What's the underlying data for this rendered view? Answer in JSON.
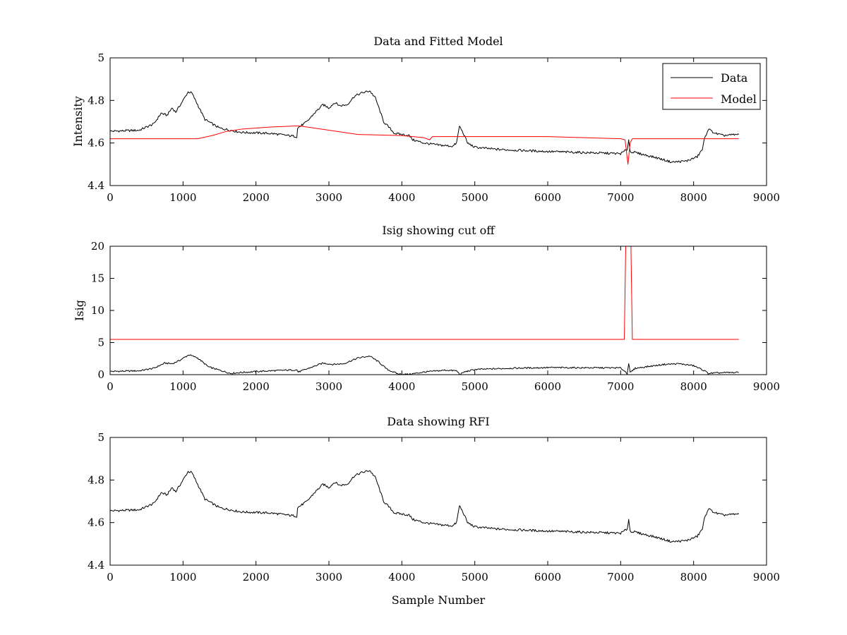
{
  "chart_data": [
    {
      "type": "line",
      "title": "Data and Fitted Model",
      "xlabel": "",
      "ylabel": "Intensity",
      "xlim": [
        0,
        9000
      ],
      "ylim": [
        4.4,
        5
      ],
      "x_ticks": [
        0,
        1000,
        2000,
        3000,
        4000,
        5000,
        6000,
        7000,
        8000,
        9000
      ],
      "y_ticks": [
        4.4,
        4.6,
        4.8,
        5
      ],
      "y_tick_labels": [
        "4.4",
        "4.6",
        "4.8",
        "5"
      ],
      "grid": false,
      "legend": "top-right",
      "series": [
        {
          "name": "Data",
          "color": "#000000",
          "points": [
            [
              0,
              4.655
            ],
            [
              400,
              4.66
            ],
            [
              600,
              4.69
            ],
            [
              700,
              4.74
            ],
            [
              780,
              4.73
            ],
            [
              850,
              4.765
            ],
            [
              900,
              4.745
            ],
            [
              1000,
              4.8
            ],
            [
              1070,
              4.84
            ],
            [
              1120,
              4.835
            ],
            [
              1200,
              4.78
            ],
            [
              1300,
              4.71
            ],
            [
              1400,
              4.69
            ],
            [
              1500,
              4.67
            ],
            [
              1800,
              4.65
            ],
            [
              2200,
              4.645
            ],
            [
              2560,
              4.63
            ],
            [
              2570,
              4.67
            ],
            [
              2700,
              4.7
            ],
            [
              2800,
              4.74
            ],
            [
              2920,
              4.78
            ],
            [
              3000,
              4.765
            ],
            [
              3080,
              4.79
            ],
            [
              3150,
              4.775
            ],
            [
              3250,
              4.78
            ],
            [
              3350,
              4.82
            ],
            [
              3450,
              4.835
            ],
            [
              3560,
              4.845
            ],
            [
              3640,
              4.81
            ],
            [
              3680,
              4.77
            ],
            [
              3750,
              4.7
            ],
            [
              3900,
              4.645
            ],
            [
              4100,
              4.635
            ],
            [
              4150,
              4.615
            ],
            [
              4300,
              4.6
            ],
            [
              4500,
              4.59
            ],
            [
              4700,
              4.585
            ],
            [
              4750,
              4.6
            ],
            [
              4790,
              4.68
            ],
            [
              4850,
              4.64
            ],
            [
              4900,
              4.6
            ],
            [
              5000,
              4.58
            ],
            [
              5300,
              4.57
            ],
            [
              6000,
              4.56
            ],
            [
              7000,
              4.55
            ],
            [
              7090,
              4.57
            ],
            [
              7110,
              4.615
            ],
            [
              7130,
              4.56
            ],
            [
              7200,
              4.555
            ],
            [
              7500,
              4.53
            ],
            [
              7700,
              4.51
            ],
            [
              7900,
              4.515
            ],
            [
              8050,
              4.535
            ],
            [
              8120,
              4.57
            ],
            [
              8150,
              4.62
            ],
            [
              8200,
              4.665
            ],
            [
              8300,
              4.645
            ],
            [
              8400,
              4.635
            ],
            [
              8620,
              4.64
            ]
          ]
        },
        {
          "name": "Model",
          "color": "#ff0000",
          "points": [
            [
              0,
              4.62
            ],
            [
              1200,
              4.62
            ],
            [
              1400,
              4.635
            ],
            [
              1600,
              4.655
            ],
            [
              1800,
              4.665
            ],
            [
              2200,
              4.675
            ],
            [
              2560,
              4.68
            ],
            [
              2580,
              4.68
            ],
            [
              2700,
              4.675
            ],
            [
              3400,
              4.64
            ],
            [
              4000,
              4.635
            ],
            [
              4300,
              4.625
            ],
            [
              4380,
              4.615
            ],
            [
              4420,
              4.63
            ],
            [
              5000,
              4.63
            ],
            [
              6000,
              4.63
            ],
            [
              6500,
              4.625
            ],
            [
              7000,
              4.62
            ],
            [
              7060,
              4.615
            ],
            [
              7100,
              4.5
            ],
            [
              7130,
              4.6
            ],
            [
              7160,
              4.62
            ],
            [
              8000,
              4.62
            ],
            [
              8620,
              4.62
            ]
          ]
        }
      ]
    },
    {
      "type": "line",
      "title": "Isig showing cut off",
      "xlabel": "",
      "ylabel": "Isig",
      "xlim": [
        0,
        9000
      ],
      "ylim": [
        0,
        20
      ],
      "x_ticks": [
        0,
        1000,
        2000,
        3000,
        4000,
        5000,
        6000,
        7000,
        8000,
        9000
      ],
      "y_ticks": [
        0,
        5,
        10,
        15,
        20
      ],
      "y_tick_labels": [
        "0",
        "5",
        "10",
        "15",
        "20"
      ],
      "grid": false,
      "series": [
        {
          "color": "#000000",
          "points": [
            [
              0,
              0.5
            ],
            [
              400,
              0.6
            ],
            [
              600,
              1.0
            ],
            [
              750,
              1.8
            ],
            [
              850,
              1.7
            ],
            [
              950,
              2.2
            ],
            [
              1080,
              3.1
            ],
            [
              1200,
              2.6
            ],
            [
              1350,
              1.2
            ],
            [
              1500,
              0.7
            ],
            [
              1650,
              0.2
            ],
            [
              1800,
              0.35
            ],
            [
              2200,
              0.6
            ],
            [
              2560,
              0.75
            ],
            [
              2580,
              0.4
            ],
            [
              2700,
              0.9
            ],
            [
              2920,
              1.8
            ],
            [
              3050,
              1.6
            ],
            [
              3200,
              1.7
            ],
            [
              3400,
              2.6
            ],
            [
              3560,
              2.9
            ],
            [
              3680,
              2.0
            ],
            [
              3800,
              0.8
            ],
            [
              3950,
              0.1
            ],
            [
              4100,
              0.05
            ],
            [
              4300,
              0.4
            ],
            [
              4600,
              0.7
            ],
            [
              4750,
              0.6
            ],
            [
              4800,
              0.0
            ],
            [
              4850,
              0.4
            ],
            [
              5000,
              0.8
            ],
            [
              5500,
              1.0
            ],
            [
              6000,
              1.1
            ],
            [
              7000,
              1.05
            ],
            [
              7090,
              0.2
            ],
            [
              7110,
              1.8
            ],
            [
              7130,
              0.3
            ],
            [
              7200,
              1.0
            ],
            [
              7600,
              1.6
            ],
            [
              7800,
              1.7
            ],
            [
              8000,
              1.4
            ],
            [
              8150,
              0.6
            ],
            [
              8200,
              0.2
            ],
            [
              8400,
              0.3
            ],
            [
              8620,
              0.35
            ]
          ]
        },
        {
          "color": "#ff0000",
          "points": [
            [
              0,
              5.5
            ],
            [
              7050,
              5.5
            ],
            [
              7070,
              20.5
            ],
            [
              7140,
              20.5
            ],
            [
              7160,
              5.5
            ],
            [
              8620,
              5.5
            ]
          ]
        }
      ]
    },
    {
      "type": "line",
      "title": "Data showing RFI",
      "xlabel": "Sample Number",
      "ylabel": "",
      "xlim": [
        0,
        9000
      ],
      "ylim": [
        4.4,
        5
      ],
      "x_ticks": [
        0,
        1000,
        2000,
        3000,
        4000,
        5000,
        6000,
        7000,
        8000,
        9000
      ],
      "y_ticks": [
        4.4,
        4.6,
        4.8,
        5
      ],
      "y_tick_labels": [
        "4.4",
        "4.6",
        "4.8",
        "5"
      ],
      "grid": false,
      "series": [
        {
          "color": "#000000",
          "points": [
            [
              0,
              4.655
            ],
            [
              400,
              4.66
            ],
            [
              600,
              4.69
            ],
            [
              700,
              4.74
            ],
            [
              780,
              4.73
            ],
            [
              850,
              4.765
            ],
            [
              900,
              4.745
            ],
            [
              1000,
              4.8
            ],
            [
              1070,
              4.84
            ],
            [
              1120,
              4.835
            ],
            [
              1200,
              4.78
            ],
            [
              1300,
              4.71
            ],
            [
              1400,
              4.69
            ],
            [
              1500,
              4.67
            ],
            [
              1800,
              4.65
            ],
            [
              2200,
              4.645
            ],
            [
              2560,
              4.63
            ],
            [
              2570,
              4.67
            ],
            [
              2700,
              4.7
            ],
            [
              2800,
              4.74
            ],
            [
              2920,
              4.78
            ],
            [
              3000,
              4.765
            ],
            [
              3080,
              4.79
            ],
            [
              3150,
              4.775
            ],
            [
              3250,
              4.78
            ],
            [
              3350,
              4.82
            ],
            [
              3450,
              4.835
            ],
            [
              3560,
              4.845
            ],
            [
              3640,
              4.81
            ],
            [
              3680,
              4.77
            ],
            [
              3750,
              4.7
            ],
            [
              3900,
              4.645
            ],
            [
              4100,
              4.635
            ],
            [
              4150,
              4.615
            ],
            [
              4300,
              4.6
            ],
            [
              4500,
              4.59
            ],
            [
              4700,
              4.585
            ],
            [
              4750,
              4.6
            ],
            [
              4790,
              4.68
            ],
            [
              4850,
              4.64
            ],
            [
              4900,
              4.6
            ],
            [
              5000,
              4.58
            ],
            [
              5300,
              4.57
            ],
            [
              6000,
              4.56
            ],
            [
              7000,
              4.55
            ],
            [
              7090,
              4.57
            ],
            [
              7110,
              4.615
            ],
            [
              7130,
              4.56
            ],
            [
              7200,
              4.555
            ],
            [
              7500,
              4.53
            ],
            [
              7700,
              4.51
            ],
            [
              7900,
              4.515
            ],
            [
              8050,
              4.535
            ],
            [
              8120,
              4.57
            ],
            [
              8150,
              4.62
            ],
            [
              8200,
              4.665
            ],
            [
              8300,
              4.645
            ],
            [
              8400,
              4.635
            ],
            [
              8620,
              4.64
            ]
          ]
        }
      ]
    }
  ]
}
